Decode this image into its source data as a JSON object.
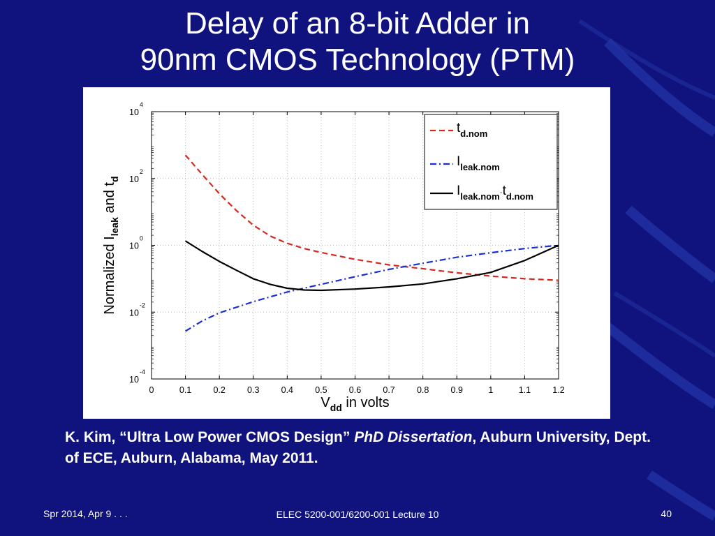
{
  "slide": {
    "title_line1": "Delay of an 8-bit Adder in",
    "title_line2": "90nm CMOS Technology (PTM)",
    "citation": {
      "part1": "K. Kim, “Ultra Low Power CMOS Design” ",
      "italic": "PhD Dissertation",
      "part2": ", Auburn University, Dept. of ECE, Auburn, Alabama, May 2011."
    },
    "footer_left": "Spr 2014, Apr 9 . . .",
    "footer_center": "ELEC 5200-001/6200-001 Lecture 10",
    "footer_right": "40"
  },
  "colors": {
    "background": "#10137e",
    "td_series": "#d42a1e",
    "ileak_series": "#1a2fd0",
    "product_series": "#000000"
  },
  "chart_data": {
    "type": "line",
    "title": "",
    "xlabel": {
      "main": "V",
      "sub": "dd",
      "rest": " in volts"
    },
    "ylabel": {
      "prefix": "Normalized I",
      "sub1": "leak",
      "mid": " and t",
      "sub2": "d"
    },
    "xlim": [
      0,
      1.2
    ],
    "ylim": [
      0.0001,
      10000
    ],
    "yscale": "log",
    "x_ticks": [
      "0",
      "0.1",
      "0.2",
      "0.3",
      "0.4",
      "0.5",
      "0.6",
      "0.7",
      "0.8",
      "0.9",
      "1",
      "1.1",
      "1.2"
    ],
    "y_ticks": [
      {
        "base": "10",
        "exp": "4"
      },
      {
        "base": "10",
        "exp": "2"
      },
      {
        "base": "10",
        "exp": "0"
      },
      {
        "base": "10",
        "exp": "-2"
      },
      {
        "base": "10",
        "exp": "-4"
      }
    ],
    "grid": true,
    "legend_position": "top-right",
    "series": [
      {
        "name": "t_d.nom",
        "label": {
          "main": "t",
          "sub": "d.nom"
        },
        "style": "dashed",
        "color": "#d42a1e",
        "x": [
          0.1,
          0.15,
          0.2,
          0.25,
          0.3,
          0.35,
          0.4,
          0.45,
          0.5,
          0.6,
          0.7,
          0.8,
          0.9,
          1.0,
          1.1,
          1.2
        ],
        "y": [
          500,
          130,
          35,
          11,
          4,
          1.9,
          1.15,
          0.8,
          0.61,
          0.38,
          0.26,
          0.2,
          0.15,
          0.12,
          0.1,
          0.09
        ]
      },
      {
        "name": "I_leak.nom",
        "label": {
          "main": "I",
          "sub": "leak.nom"
        },
        "style": "dashdot",
        "color": "#1a2fd0",
        "x": [
          0.1,
          0.15,
          0.2,
          0.3,
          0.4,
          0.5,
          0.6,
          0.7,
          0.8,
          0.9,
          1.0,
          1.1,
          1.2
        ],
        "y": [
          0.0027,
          0.0055,
          0.0095,
          0.0205,
          0.04,
          0.068,
          0.115,
          0.19,
          0.29,
          0.44,
          0.6,
          0.8,
          1.0
        ]
      },
      {
        "name": "I_leak.nom · t_d.nom",
        "label": {
          "main": "I",
          "sub": "leak.nom",
          "dot": "·",
          "main2": "t",
          "sub2": "d.nom"
        },
        "style": "solid",
        "color": "#000000",
        "x": [
          0.1,
          0.15,
          0.2,
          0.25,
          0.3,
          0.35,
          0.4,
          0.45,
          0.5,
          0.6,
          0.7,
          0.8,
          0.9,
          1.0,
          1.1,
          1.2
        ],
        "y": [
          1.35,
          0.65,
          0.33,
          0.18,
          0.1,
          0.068,
          0.052,
          0.046,
          0.045,
          0.049,
          0.057,
          0.07,
          0.1,
          0.155,
          0.35,
          1.0
        ]
      }
    ]
  }
}
